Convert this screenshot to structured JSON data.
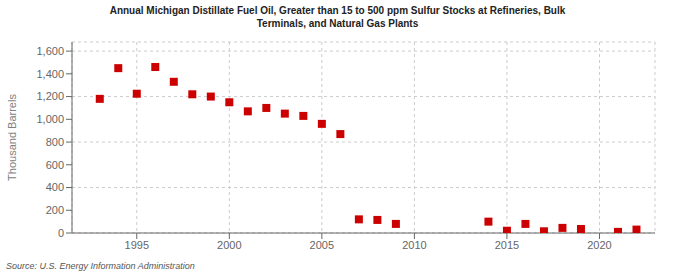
{
  "chart_data": {
    "type": "scatter",
    "title": "Annual Michigan Distillate Fuel Oil, Greater than 15 to 500 ppm Sulfur Stocks at Refineries, Bulk\nTerminals, and Natural Gas Plants",
    "ylabel": "Thousand Barrels",
    "annotations": [
      "Source: U.S. Energy Information Administration"
    ],
    "x": [
      1993,
      1994,
      1995,
      1996,
      1997,
      1998,
      1999,
      2000,
      2001,
      2002,
      2003,
      2004,
      2005,
      2006,
      2007,
      2008,
      2009,
      2014,
      2015,
      2016,
      2017,
      2018,
      2019,
      2021,
      2022
    ],
    "values": [
      1180,
      1450,
      1225,
      1460,
      1330,
      1220,
      1200,
      1150,
      1070,
      1100,
      1050,
      1030,
      960,
      870,
      120,
      115,
      80,
      100,
      20,
      80,
      15,
      45,
      35,
      10,
      30
    ],
    "color": "#cc0000",
    "marker": "square",
    "xlim": [
      1991.5,
      2023
    ],
    "xticks": [
      1995,
      2000,
      2005,
      2010,
      2015,
      2020
    ],
    "ylim": [
      0,
      1680
    ],
    "yticks": [
      0,
      200,
      400,
      600,
      800,
      {
        "value": 1000,
        "label": "1,000"
      },
      {
        "value": 1200,
        "label": "1,200"
      },
      {
        "value": 1400,
        "label": "1,400"
      },
      {
        "value": 1600,
        "label": "1,600"
      }
    ],
    "grid": true
  }
}
